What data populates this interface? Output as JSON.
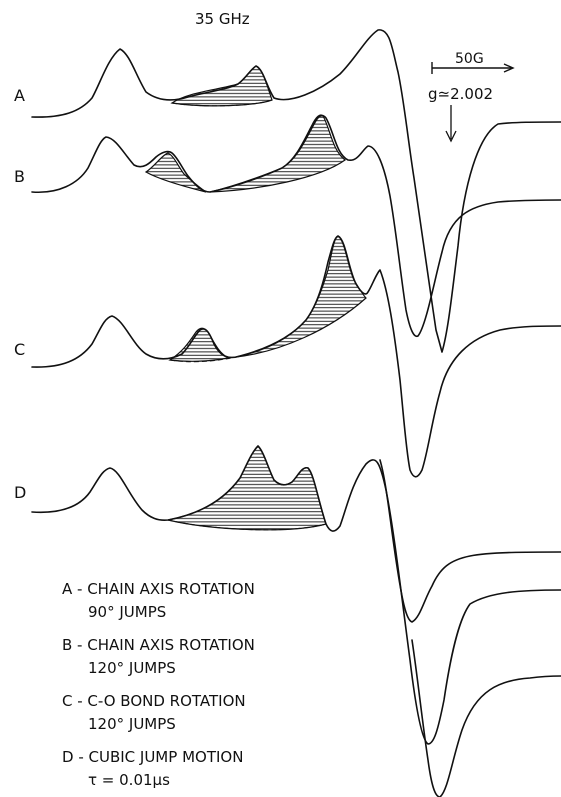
{
  "frequency_label": "35 GHz",
  "scale_bar_label": "50G",
  "g_value_label": "g≃2.002",
  "traces": [
    {
      "letter": "A"
    },
    {
      "letter": "B"
    },
    {
      "letter": "C"
    },
    {
      "letter": "D"
    }
  ],
  "legend": [
    {
      "line1": "A - CHAIN AXIS ROTATION",
      "line2": "90° JUMPS"
    },
    {
      "line1": "B - CHAIN AXIS ROTATION",
      "line2": "120° JUMPS"
    },
    {
      "line1": "C - C-O BOND ROTATION",
      "line2": "120° JUMPS"
    },
    {
      "line1": "D - CUBIC JUMP MOTION",
      "line2": "τ = 0.01μs"
    }
  ]
}
